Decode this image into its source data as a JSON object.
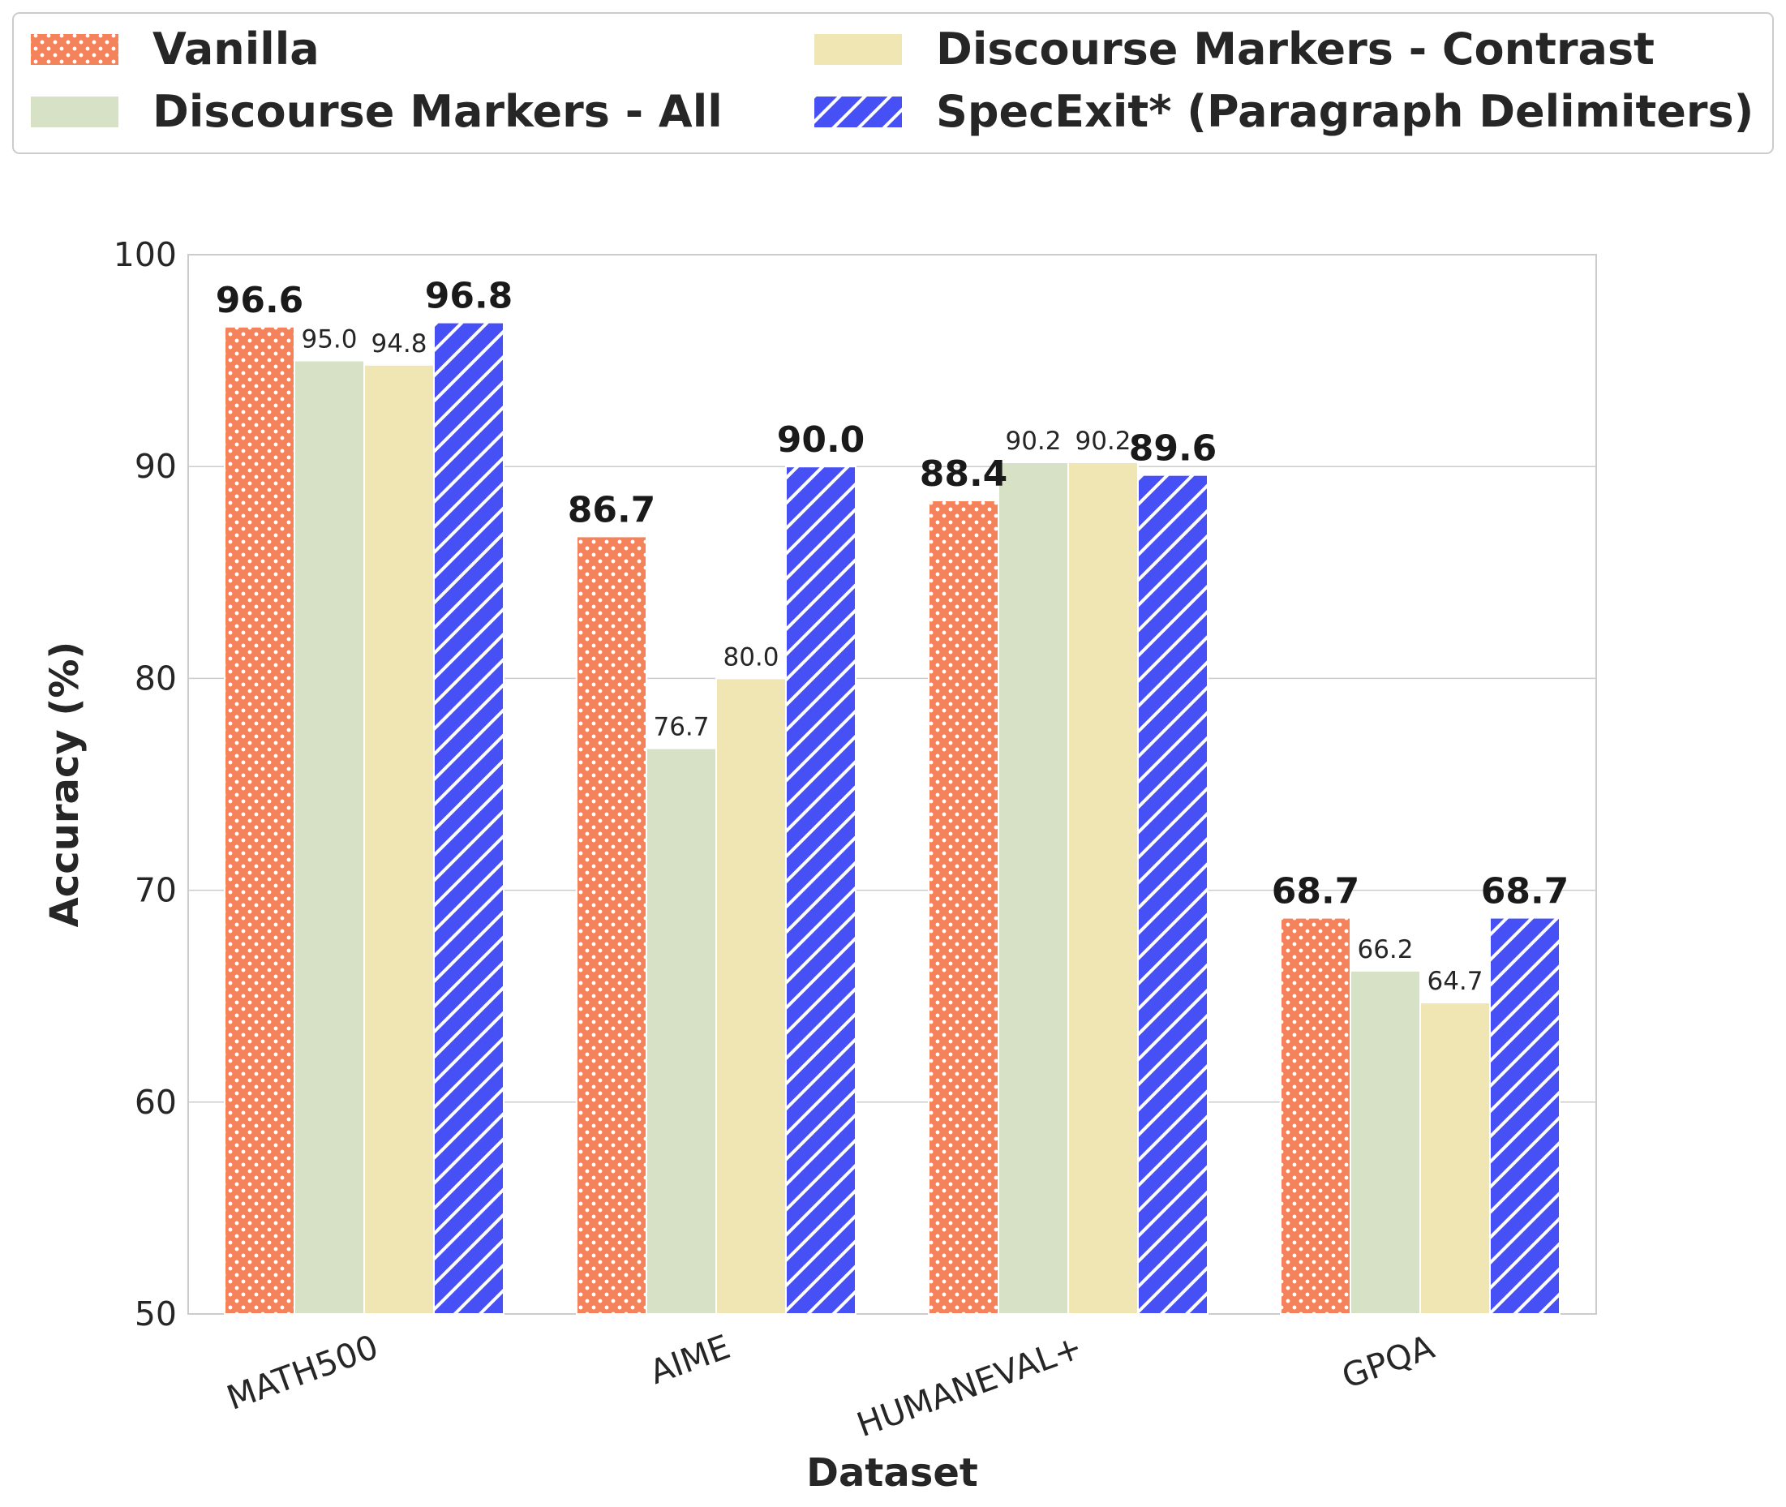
{
  "chart_data": {
    "type": "bar",
    "xlabel": "Dataset",
    "ylabel": "Accuracy (%)",
    "ylim": [
      50,
      100
    ],
    "yticks": [
      "50",
      "60",
      "70",
      "80",
      "90",
      "100"
    ],
    "grid": "horizontal",
    "legend_position": "top",
    "categories": [
      "MATH500",
      "AIME",
      "HUMANEVAL+",
      "GPQA"
    ],
    "series": [
      {
        "name": "Vanilla",
        "values": [
          96.6,
          86.7,
          88.4,
          68.7
        ],
        "labels": [
          "96.6",
          "86.7",
          "88.4",
          "68.7"
        ],
        "label_style": "bold",
        "color": "#F4825A",
        "pattern": "dots"
      },
      {
        "name": "Discourse Markers - All",
        "values": [
          95.0,
          76.7,
          90.2,
          66.2
        ],
        "labels": [
          "95.0",
          "76.7",
          "90.2",
          "66.2"
        ],
        "label_style": "normal",
        "color": "#D6E1C6",
        "pattern": "none"
      },
      {
        "name": "Discourse Markers - Contrast",
        "values": [
          94.8,
          80.0,
          90.2,
          64.7
        ],
        "labels": [
          "94.8",
          "80.0",
          "90.2",
          "64.7"
        ],
        "label_style": "normal",
        "color": "#F0E6B4",
        "pattern": "none"
      },
      {
        "name": "SpecExit* (Paragraph Delimiters)",
        "values": [
          96.8,
          90.0,
          89.6,
          68.7
        ],
        "labels": [
          "96.8",
          "90.0",
          "89.6",
          "68.7"
        ],
        "label_style": "bold",
        "color": "#4650F5",
        "pattern": "hatch"
      }
    ]
  }
}
